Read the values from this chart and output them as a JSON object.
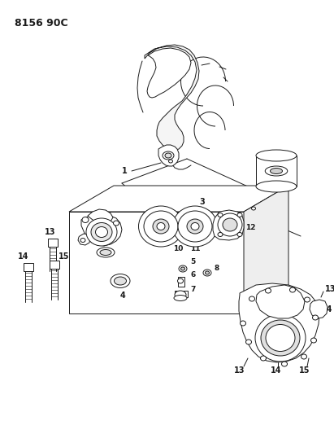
{
  "title": "8156 90C",
  "bg_color": "#ffffff",
  "line_color": "#1a1a1a",
  "title_fontsize": 9,
  "label_fontsize": 6.5,
  "fig_width": 4.11,
  "fig_height": 5.33,
  "dpi": 100
}
